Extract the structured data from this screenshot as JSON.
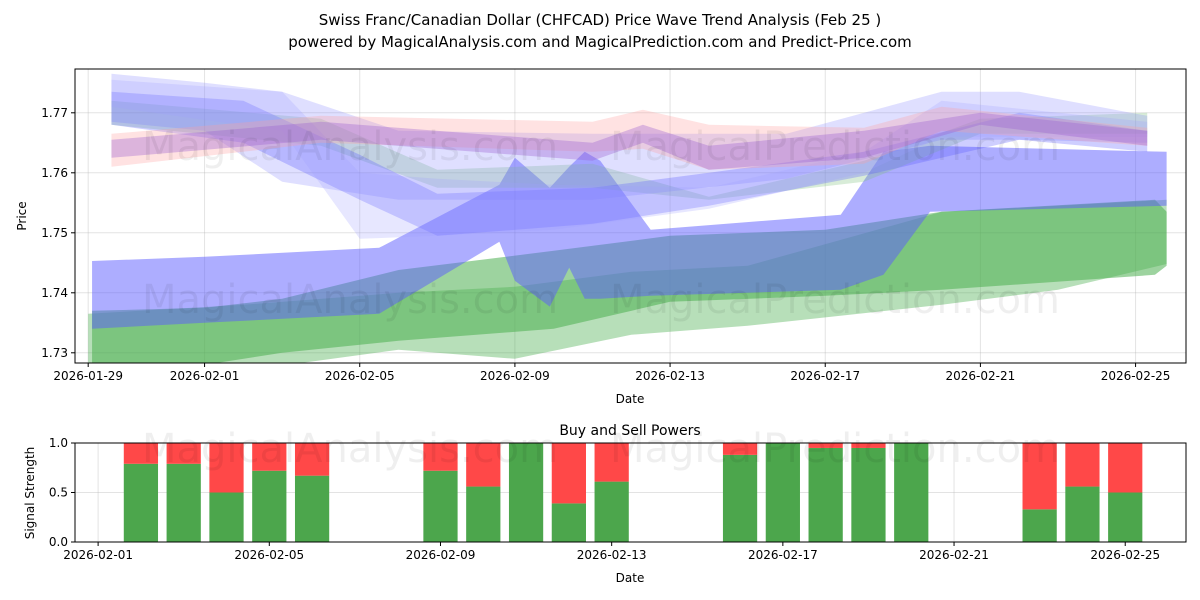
{
  "title_line1": "Swiss Franc/Canadian Dollar (CHFCAD) Price Wave Trend Analysis (Feb 25 )",
  "title_line2": "powered by MagicalAnalysis.com and MagicalPrediction.com and Predict-Price.com",
  "watermarks": [
    "MagicalAnalysis.com",
    "MagicalPrediction.com"
  ],
  "chart_data": [
    {
      "type": "area",
      "title": "",
      "xlabel": "Date",
      "ylabel": "Price",
      "x_origin": "2026-01-29",
      "x_unit": "days since 2026-01-29",
      "xlim": [
        -0.34,
        28.3
      ],
      "ylim": [
        1.7283,
        1.7773
      ],
      "yticks": [
        1.73,
        1.74,
        1.75,
        1.76,
        1.77
      ],
      "ytick_labels": [
        "1.73",
        "1.74",
        "1.75",
        "1.76",
        "1.77"
      ],
      "xticks": [
        0,
        3,
        7,
        11,
        15,
        19,
        23,
        27
      ],
      "xtick_labels": [
        "2026-01-29",
        "2026-02-01",
        "2026-02-05",
        "2026-02-09",
        "2026-02-13",
        "2026-02-17",
        "2026-02-21",
        "2026-02-25"
      ],
      "grid": true,
      "bands": [
        {
          "name": "green-wide",
          "color": "#4caf50",
          "opacity": 0.4,
          "x": [
            0,
            4,
            8,
            11,
            14,
            17,
            22,
            25,
            27.8
          ],
          "hi": [
            1.7365,
            1.738,
            1.74,
            1.741,
            1.7435,
            1.7445,
            1.7535,
            1.7545,
            1.7555
          ],
          "lo": [
            1.725,
            1.727,
            1.7305,
            1.729,
            1.733,
            1.7345,
            1.738,
            1.7405,
            1.7448
          ]
        },
        {
          "name": "green-main",
          "color": "#4caf50",
          "opacity": 0.55,
          "x": [
            0.1,
            3,
            5,
            8,
            12,
            15,
            19,
            22,
            27.5,
            27.8
          ],
          "hi": [
            1.737,
            1.7375,
            1.739,
            1.7438,
            1.747,
            1.7495,
            1.7505,
            1.7535,
            1.7555,
            1.7535
          ],
          "lo": [
            1.727,
            1.728,
            1.73,
            1.732,
            1.734,
            1.7385,
            1.7395,
            1.7405,
            1.743,
            1.7445
          ]
        },
        {
          "name": "blue-wave",
          "color": "#5c5cff",
          "opacity": 0.5,
          "x": [
            0.1,
            3,
            7.5,
            10.6,
            11,
            11.9,
            12.4,
            12.8,
            13.2,
            14.5,
            19.4,
            20.5,
            21.7,
            27.8
          ],
          "hi": [
            1.7453,
            1.746,
            1.7475,
            1.758,
            1.7625,
            1.7575,
            1.761,
            1.7635,
            1.762,
            1.7505,
            1.753,
            1.7635,
            1.7645,
            1.7635
          ],
          "lo": [
            1.734,
            1.735,
            1.7365,
            1.7485,
            1.742,
            1.7377,
            1.7442,
            1.739,
            1.739,
            1.7395,
            1.7405,
            1.743,
            1.7535,
            1.7545
          ]
        },
        {
          "name": "green-upper",
          "color": "#7fbf7f",
          "opacity": 0.3,
          "x": [
            0.6,
            6,
            9,
            13,
            16,
            20,
            23,
            27.3
          ],
          "hi": [
            1.772,
            1.769,
            1.7605,
            1.7615,
            1.756,
            1.762,
            1.769,
            1.77
          ],
          "lo": [
            1.768,
            1.7645,
            1.7575,
            1.7575,
            1.7555,
            1.7585,
            1.7665,
            1.7665
          ]
        },
        {
          "name": "blue-1",
          "color": "#7f7fff",
          "opacity": 0.25,
          "x": [
            0.6,
            3,
            5,
            8,
            13,
            18,
            22,
            24,
            27.3
          ],
          "hi": [
            1.7765,
            1.775,
            1.7735,
            1.767,
            1.7665,
            1.7665,
            1.7735,
            1.7735,
            1.7695
          ],
          "lo": [
            1.7685,
            1.767,
            1.7585,
            1.7555,
            1.7555,
            1.759,
            1.7655,
            1.7655,
            1.765
          ]
        },
        {
          "name": "blue-2",
          "color": "#5c5cff",
          "opacity": 0.3,
          "x": [
            0.6,
            4,
            7,
            9,
            13,
            16,
            20,
            24,
            27.3
          ],
          "hi": [
            1.7735,
            1.772,
            1.763,
            1.7565,
            1.7575,
            1.76,
            1.7635,
            1.77,
            1.767
          ],
          "lo": [
            1.768,
            1.765,
            1.7555,
            1.7495,
            1.7515,
            1.7545,
            1.7595,
            1.7655,
            1.7635
          ]
        },
        {
          "name": "blue-3",
          "color": "#9f9fff",
          "opacity": 0.25,
          "x": [
            0.6,
            5,
            7,
            9,
            12,
            16,
            20,
            22,
            27.3
          ],
          "hi": [
            1.7755,
            1.7735,
            1.76,
            1.759,
            1.758,
            1.7575,
            1.7635,
            1.772,
            1.7685
          ],
          "lo": [
            1.771,
            1.767,
            1.749,
            1.7495,
            1.7505,
            1.754,
            1.76,
            1.766,
            1.766
          ]
        },
        {
          "name": "pink-1",
          "color": "#ff9f9f",
          "opacity": 0.3,
          "x": [
            0.6,
            6,
            13,
            14.3,
            16,
            20,
            22,
            27.3
          ],
          "hi": [
            1.7665,
            1.7695,
            1.7685,
            1.7705,
            1.768,
            1.7675,
            1.771,
            1.7675
          ],
          "lo": [
            1.761,
            1.765,
            1.7635,
            1.764,
            1.7605,
            1.7615,
            1.767,
            1.7645
          ]
        },
        {
          "name": "purple-1",
          "color": "#9a5fd0",
          "opacity": 0.35,
          "x": [
            0.6,
            6,
            13,
            14.3,
            16,
            20,
            23,
            27.3
          ],
          "hi": [
            1.7655,
            1.7685,
            1.765,
            1.768,
            1.7645,
            1.767,
            1.77,
            1.767
          ],
          "lo": [
            1.7625,
            1.7655,
            1.762,
            1.765,
            1.7605,
            1.7625,
            1.768,
            1.7645
          ]
        }
      ]
    },
    {
      "type": "bar",
      "title": "Buy and Sell Powers",
      "xlabel": "Date",
      "ylabel": "Signal Strength",
      "x_origin": "2026-02-01",
      "x_unit": "days since 2026-02-01",
      "xlim": [
        -0.54,
        25.42
      ],
      "ylim": [
        0,
        1
      ],
      "yticks": [
        0,
        0.5,
        1
      ],
      "ytick_labels": [
        "0.0",
        "0.5",
        "1.0"
      ],
      "xticks": [
        0,
        4,
        8,
        12,
        16,
        20,
        24
      ],
      "xtick_labels": [
        "2026-02-01",
        "2026-02-05",
        "2026-02-09",
        "2026-02-13",
        "2026-02-17",
        "2026-02-21",
        "2026-02-25"
      ],
      "categories": [
        "2026-02-02",
        "2026-02-03",
        "2026-02-04",
        "2026-02-05",
        "2026-02-06",
        "2026-02-09",
        "2026-02-10",
        "2026-02-11",
        "2026-02-12",
        "2026-02-13",
        "2026-02-16",
        "2026-02-17",
        "2026-02-18",
        "2026-02-19",
        "2026-02-20",
        "2026-02-23",
        "2026-02-24",
        "2026-02-25"
      ],
      "day_offsets": [
        1,
        2,
        3,
        4,
        5,
        8,
        9,
        10,
        11,
        12,
        15,
        16,
        17,
        18,
        19,
        22,
        23,
        24
      ],
      "series": [
        {
          "name": "Buy",
          "color": "#4ca64c",
          "values": [
            0.79,
            0.79,
            0.5,
            0.72,
            0.67,
            0.72,
            0.56,
            1.0,
            0.39,
            0.61,
            0.88,
            1.0,
            0.95,
            0.95,
            1.0,
            0.33,
            0.56,
            0.5
          ]
        },
        {
          "name": "Sell",
          "color": "#ff4848",
          "values": [
            0.21,
            0.21,
            0.5,
            0.28,
            0.33,
            0.28,
            0.44,
            0.0,
            0.61,
            0.39,
            0.12,
            0.0,
            0.05,
            0.05,
            0.0,
            0.67,
            0.44,
            0.5
          ]
        }
      ],
      "grid": true
    }
  ]
}
